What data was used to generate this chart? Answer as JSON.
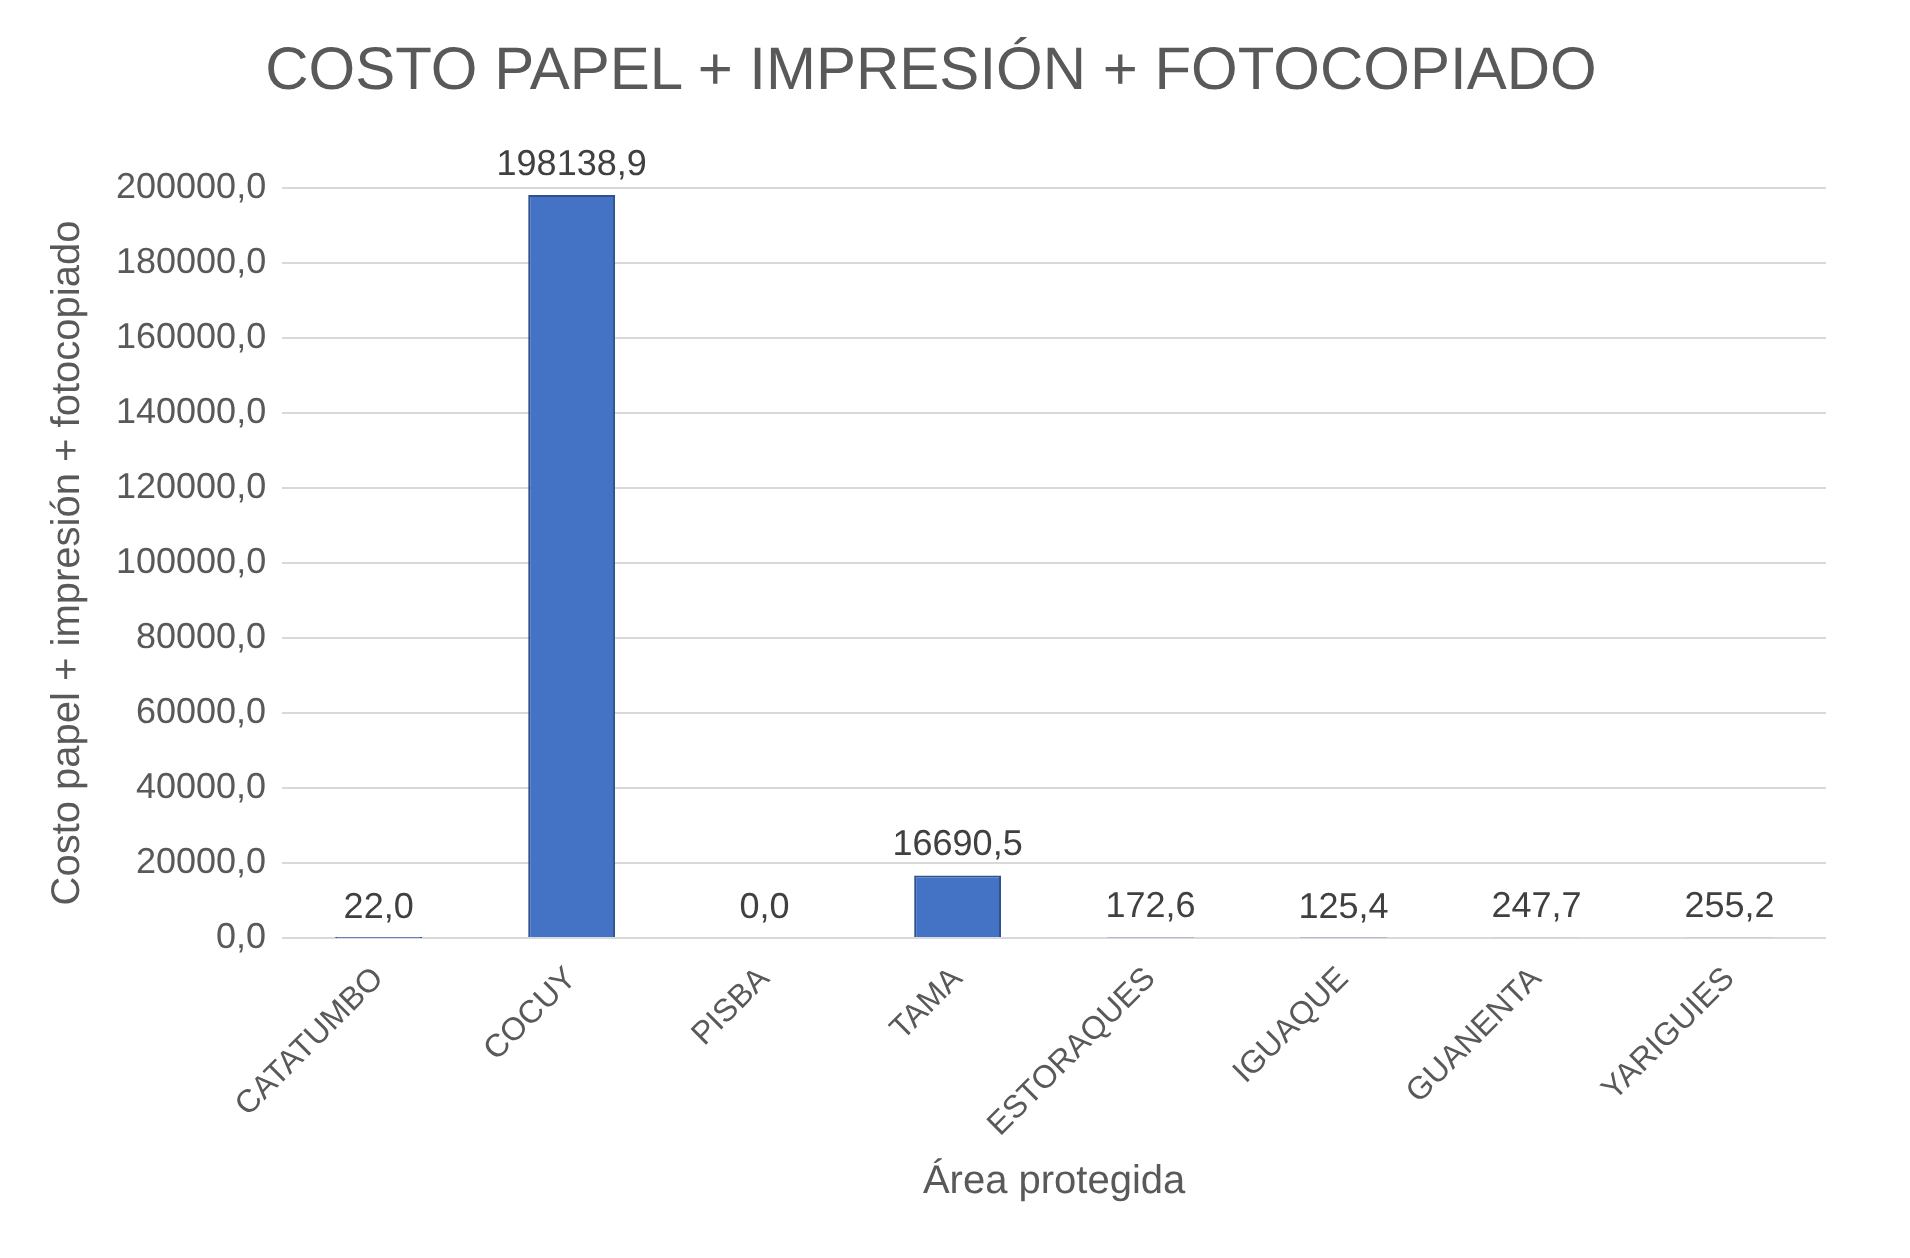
{
  "chart_data": {
    "type": "bar",
    "title": "COSTO PAPEL + IMPRESIÓN + FOTOCOPIADO",
    "xlabel": "Área protegida",
    "ylabel": "Costo papel + impresión + fotocopiado",
    "categories": [
      "CATATUMBO",
      "COCUY",
      "PISBA",
      "TAMA",
      "ESTORAQUES",
      "IGUAQUE",
      "GUANENTA",
      "YARIGUIES"
    ],
    "values": [
      22.0,
      198138.9,
      0.0,
      16690.5,
      172.6,
      125.4,
      247.7,
      255.2
    ],
    "value_labels": [
      "22,0",
      "198138,9",
      "0,0",
      "16690,5",
      "172,6",
      "125,4",
      "247,7",
      "255,2"
    ],
    "color": "#4472c4",
    "ylim": [
      0,
      200000
    ],
    "yticks": [
      {
        "value": 0,
        "label": "0,0"
      },
      {
        "value": 20000,
        "label": "20000,0"
      },
      {
        "value": 40000,
        "label": "40000,0"
      },
      {
        "value": 60000,
        "label": "60000,0"
      },
      {
        "value": 80000,
        "label": "80000,0"
      },
      {
        "value": 100000,
        "label": "100000,0"
      },
      {
        "value": 120000,
        "label": "120000,0"
      },
      {
        "value": 140000,
        "label": "140000,0"
      },
      {
        "value": 160000,
        "label": "160000,0"
      },
      {
        "value": 180000,
        "label": "180000,0"
      },
      {
        "value": 200000,
        "label": "200000,0"
      }
    ],
    "grid": "y"
  }
}
